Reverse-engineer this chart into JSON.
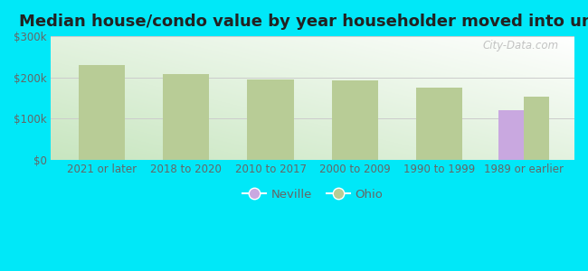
{
  "title": "Median house/condo value by year householder moved into unit",
  "categories": [
    "2021 or later",
    "2018 to 2020",
    "2010 to 2017",
    "2000 to 2009",
    "1990 to 1999",
    "1989 or earlier"
  ],
  "neville_values": [
    null,
    null,
    null,
    null,
    null,
    120000
  ],
  "ohio_values": [
    230000,
    208000,
    195000,
    193000,
    175000,
    152000
  ],
  "neville_color": "#c9a8e0",
  "ohio_color": "#b8cc96",
  "background_outer": "#00e8f8",
  "yticks": [
    0,
    100000,
    200000,
    300000
  ],
  "ytick_labels": [
    "$0",
    "$100k",
    "$200k",
    "$300k"
  ],
  "ylim": [
    0,
    300000
  ],
  "single_bar_width": 0.55,
  "pair_bar_width": 0.3,
  "title_fontsize": 13,
  "watermark": "City-Data.com",
  "tick_color": "#666666",
  "tick_fontsize": 8.5
}
